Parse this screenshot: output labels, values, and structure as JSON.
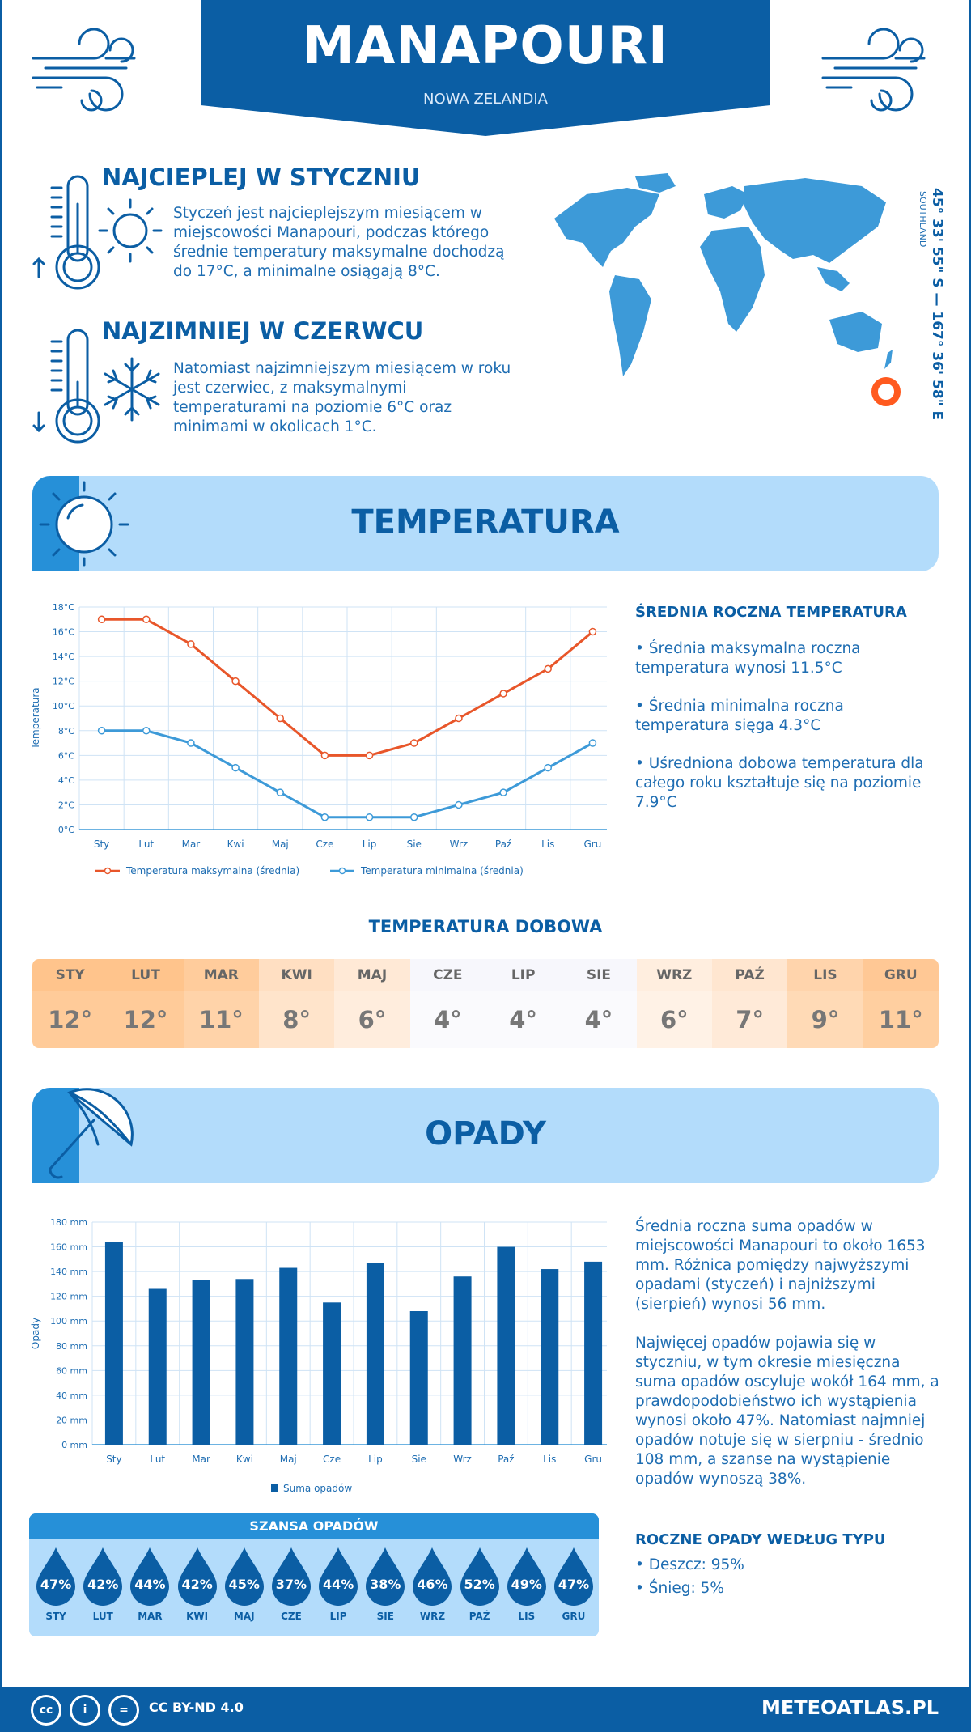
{
  "header": {
    "title": "MANAPOURI",
    "subtitle": "NOWA ZELANDIA"
  },
  "facts": {
    "warm": {
      "title": "NAJCIEPLEJ W STYCZNIU",
      "text": "Styczeń jest najcieplejszym miesiącem w miejscowości Manapouri, podczas którego średnie temperatury maksymalne dochodzą do 17°C, a minimalne osiągają 8°C."
    },
    "cold": {
      "title": "NAJZIMNIEJ W CZERWCU",
      "text": "Natomiast najzimniejszym miesiącem w roku jest czerwiec, z maksymalnymi temperaturami na poziomie 6°C oraz minimami w okolicach 1°C."
    }
  },
  "location": {
    "coords": "45° 33' 55\" S — 167° 36' 58\" E",
    "region": "SOUTHLAND"
  },
  "temperature_section": {
    "title": "TEMPERATURA",
    "side_title": "ŚREDNIA ROCZNA TEMPERATURA",
    "bullets": [
      "• Średnia maksymalna roczna temperatura wynosi 11.5°C",
      "• Średnia minimalna roczna temperatura sięga 4.3°C",
      "• Uśredniona dobowa temperatura dla całego roku kształtuje się na poziomie 7.9°C"
    ]
  },
  "daily": {
    "title": "TEMPERATURA DOBOWA",
    "months": [
      "STY",
      "LUT",
      "MAR",
      "KWI",
      "MAJ",
      "CZE",
      "LIP",
      "SIE",
      "WRZ",
      "PAŹ",
      "LIS",
      "GRU"
    ],
    "values": [
      "12°",
      "12°",
      "11°",
      "8°",
      "6°",
      "4°",
      "4°",
      "4°",
      "6°",
      "7°",
      "9°",
      "11°"
    ],
    "colors_head": [
      "#ffc48c",
      "#ffc48c",
      "#ffcc9c",
      "#ffdfc2",
      "#ffe9d6",
      "#f7f7fc",
      "#f7f7fc",
      "#f7f7fc",
      "#ffeedf",
      "#ffe6d0",
      "#ffd4ac",
      "#ffc895"
    ],
    "colors_val": [
      "#ffcb99",
      "#ffcb99",
      "#ffd3a9",
      "#ffe4cb",
      "#ffeddd",
      "#fafafd",
      "#fafafd",
      "#fafafd",
      "#fff2e6",
      "#ffead8",
      "#ffdab6",
      "#ffcfa0"
    ]
  },
  "precip_section": {
    "title": "OPADY",
    "text1": "Średnia roczna suma opadów w miejscowości Manapouri to około 1653 mm. Różnica pomiędzy najwyższymi opadami (styczeń) i najniższymi (sierpień) wynosi 56 mm.",
    "text2": "Najwięcej opadów pojawia się w styczniu, w tym okresie miesięczna suma opadów oscyluje wokół 164 mm, a prawdopodobieństwo ich wystąpienia wynosi około 47%. Natomiast najmniej opadów notuje się w sierpniu - średnio 108 mm, a szanse na wystąpienie opadów wynoszą 38%.",
    "type_title": "ROCZNE OPADY WEDŁUG TYPU",
    "types": [
      "• Deszcz: 95%",
      "• Śnieg: 5%"
    ]
  },
  "chance": {
    "title": "SZANSA OPADÓW",
    "values": [
      "47%",
      "42%",
      "44%",
      "42%",
      "45%",
      "37%",
      "44%",
      "38%",
      "46%",
      "52%",
      "49%",
      "47%"
    ],
    "months": [
      "STY",
      "LUT",
      "MAR",
      "KWI",
      "MAJ",
      "CZE",
      "LIP",
      "SIE",
      "WRZ",
      "PAŹ",
      "LIS",
      "GRU"
    ]
  },
  "footer": {
    "license": "CC BY-ND 4.0",
    "brand": "METEOATLAS.PL",
    "cc_icons": [
      "cc",
      "i",
      "="
    ]
  },
  "chart_data": [
    {
      "type": "line",
      "categories": [
        "Sty",
        "Lut",
        "Mar",
        "Kwi",
        "Maj",
        "Cze",
        "Lip",
        "Sie",
        "Wrz",
        "Paź",
        "Lis",
        "Gru"
      ],
      "series": [
        {
          "name": "Temperatura maksymalna (średnia)",
          "color": "#e8562a",
          "values": [
            17,
            17,
            15,
            12,
            9,
            6,
            6,
            7,
            9,
            11,
            13,
            16
          ]
        },
        {
          "name": "Temperatura minimalna (średnia)",
          "color": "#3d9ad8",
          "values": [
            8,
            8,
            7,
            5,
            3,
            1,
            1,
            1,
            2,
            3,
            5,
            7
          ]
        }
      ],
      "ylabel": "Temperatura",
      "ylim": [
        0,
        18
      ],
      "yticks": [
        "0°C",
        "2°C",
        "4°C",
        "6°C",
        "8°C",
        "10°C",
        "12°C",
        "14°C",
        "16°C",
        "18°C"
      ],
      "grid": true,
      "legend": "bottom"
    },
    {
      "type": "bar",
      "categories": [
        "Sty",
        "Lut",
        "Mar",
        "Kwi",
        "Maj",
        "Cze",
        "Lip",
        "Sie",
        "Wrz",
        "Paź",
        "Lis",
        "Gru"
      ],
      "series": [
        {
          "name": "Suma opadów",
          "color": "#0b5ea4",
          "values": [
            164,
            126,
            133,
            134,
            143,
            115,
            147,
            108,
            136,
            160,
            142,
            148
          ]
        }
      ],
      "ylabel": "Opady",
      "ylim": [
        0,
        180
      ],
      "yticks": [
        "0 mm",
        "20 mm",
        "40 mm",
        "60 mm",
        "80 mm",
        "100 mm",
        "120 mm",
        "140 mm",
        "160 mm",
        "180 mm"
      ],
      "grid": true,
      "legend": "bottom"
    }
  ]
}
